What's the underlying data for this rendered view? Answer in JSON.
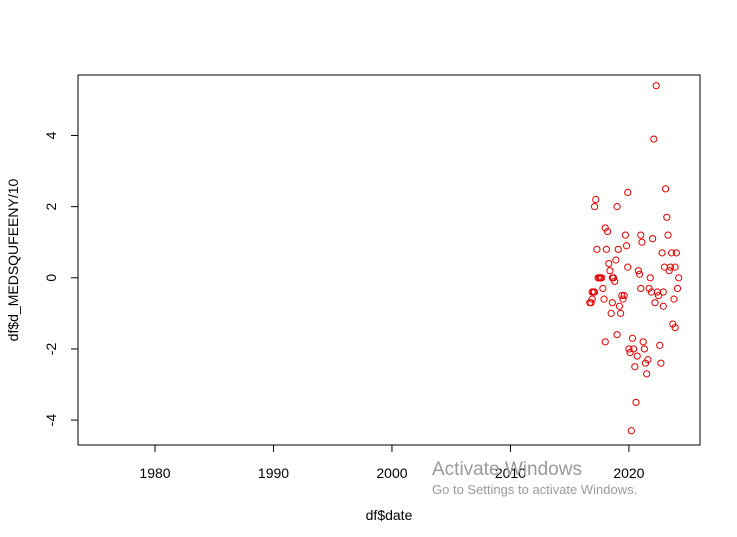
{
  "chart_data": {
    "type": "scatter",
    "xlabel": "df$date",
    "ylabel": "df$d_MEDSQUFEENY/10",
    "xlim": [
      1973.5,
      2026
    ],
    "ylim": [
      -4.7,
      5.7
    ],
    "x_ticks": [
      1980,
      1990,
      2000,
      2010,
      2020
    ],
    "y_ticks": [
      -4,
      -2,
      0,
      2,
      4
    ],
    "grid": false,
    "marker": "open-circle",
    "color": "#e00000",
    "x": [
      2016.8,
      2016.9,
      2017.0,
      2017.1,
      2017.2,
      2017.3,
      2017.4,
      2017.5,
      2017.6,
      2017.7,
      2017.8,
      2017.9,
      2018.0,
      2018.1,
      2018.2,
      2018.3,
      2018.4,
      2018.5,
      2018.6,
      2018.7,
      2018.8,
      2018.9,
      2019.0,
      2019.1,
      2019.2,
      2019.3,
      2019.4,
      2019.5,
      2019.6,
      2019.7,
      2019.8,
      2019.9,
      2020.0,
      2020.1,
      2020.2,
      2020.3,
      2020.4,
      2020.5,
      2020.6,
      2020.7,
      2020.8,
      2020.9,
      2021.0,
      2021.1,
      2021.2,
      2021.3,
      2021.4,
      2021.5,
      2021.6,
      2021.7,
      2021.8,
      2021.9,
      2022.0,
      2022.1,
      2022.2,
      2022.3,
      2022.4,
      2022.5,
      2022.6,
      2022.7,
      2022.8,
      2022.9,
      2023.0,
      2023.1,
      2023.2,
      2023.3,
      2023.4,
      2023.5,
      2023.6,
      2023.7,
      2023.8,
      2023.9,
      2024.0,
      2024.1,
      2024.2,
      2016.7,
      2016.9,
      2017.1,
      2018.0,
      2018.6,
      2019.0,
      2019.9,
      2021.0,
      2022.9,
      2023.9
    ],
    "y": [
      -0.7,
      -0.6,
      -0.4,
      2.0,
      2.2,
      0.8,
      0.0,
      0.0,
      0.0,
      0.0,
      -0.3,
      -0.6,
      1.4,
      0.8,
      1.3,
      0.4,
      0.2,
      -1.0,
      -0.7,
      0.0,
      -0.1,
      0.5,
      2.0,
      0.8,
      -0.8,
      -1.0,
      -0.5,
      -0.6,
      -0.5,
      1.2,
      0.9,
      0.3,
      -2.0,
      -2.1,
      -4.3,
      -1.7,
      -2.0,
      -2.5,
      -3.5,
      -2.2,
      0.2,
      0.1,
      1.2,
      1.0,
      -1.8,
      -2.0,
      -2.4,
      -2.7,
      -2.3,
      -0.3,
      0.0,
      -0.4,
      1.1,
      3.9,
      -0.7,
      5.4,
      -0.4,
      -0.5,
      -1.9,
      -2.4,
      0.7,
      -0.4,
      0.3,
      2.5,
      1.7,
      1.2,
      0.2,
      0.3,
      0.7,
      -1.3,
      -0.6,
      -1.4,
      0.7,
      -0.3,
      0.0,
      -0.7,
      -0.4,
      -0.4,
      -1.8,
      0.0,
      -1.6,
      2.4,
      -0.3,
      -0.8,
      0.3
    ]
  },
  "watermark": {
    "title": "Activate Windows",
    "subtitle": "Go to Settings to activate Windows."
  }
}
